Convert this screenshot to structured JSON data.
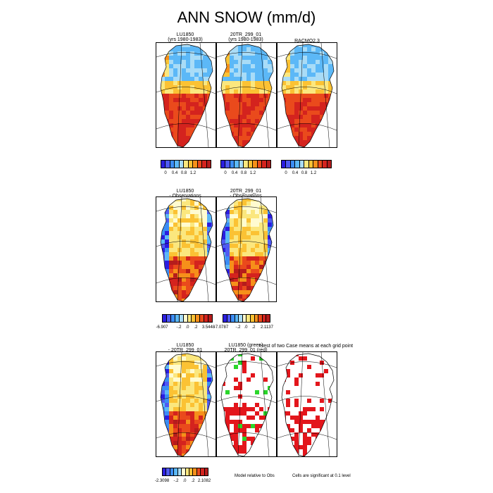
{
  "title": "ANN SNOW (mm/d)",
  "panels": {
    "p1": {
      "line1": "LU1850",
      "line2": "(yrs 1980-1983)"
    },
    "p2": {
      "line1": "20TR_299_01",
      "line2": "(yrs 1980-1983)"
    },
    "p3": {
      "line1": "RACMO2.3",
      "line2": ""
    },
    "p4": {
      "line1": "LU1850",
      "line2": "- Observations"
    },
    "p5": {
      "line1": "20TR_299_01",
      "line2": "- Observations"
    },
    "p6": {
      "line1": "LU1850",
      "line2": "- 20TR_299_01"
    },
    "p7": {
      "line1": "LU1850 (green)",
      "line2": "20TR_299_01 (red)"
    },
    "p8": {
      "line1": "t-test of two Case means at each grid point",
      "line2": ""
    }
  },
  "colorbars": {
    "cb1": {
      "ticks": [
        "0",
        "0.4",
        "0.8",
        "1.2"
      ]
    },
    "cb2": {
      "ticks": [
        "0",
        "0.4",
        "0.8",
        "1.2"
      ]
    },
    "cb3": {
      "ticks": [
        "0",
        "0.4",
        "0.8",
        "1.2"
      ]
    },
    "cb4": {
      "ticks": [
        "-6.907",
        "-.2",
        ".0",
        ".2",
        "3.5448"
      ]
    },
    "cb5": {
      "ticks": [
        "-7.0787",
        "-.2",
        ".0",
        ".2",
        "2.1137"
      ]
    },
    "cb6": {
      "ticks": [
        "-2.3098",
        "-.2",
        ".0",
        ".2",
        "2.1082"
      ]
    }
  },
  "notes": {
    "model_relative": "Model relative to Obs",
    "significance": "Cells are significant at 0.1 level"
  },
  "colors": {
    "absolute_scale": [
      "#2b1de0",
      "#4f5bf2",
      "#3b8df5",
      "#5cb8f7",
      "#a9dcf7",
      "#fbe77e",
      "#fbc234",
      "#f6901a",
      "#ea4a1c",
      "#d4231e",
      "#b51c1c"
    ],
    "diff_scale": [
      "#2b1de0",
      "#4f5bf2",
      "#3b8df5",
      "#5cb8f7",
      "#a9dcf7",
      "#fffbd0",
      "#fbe77e",
      "#fbc234",
      "#f6901a",
      "#ea4a1c",
      "#d4231e",
      "#b51c1c"
    ],
    "significant_red": "#e3161c",
    "significant_green": "#2ad62a"
  }
}
